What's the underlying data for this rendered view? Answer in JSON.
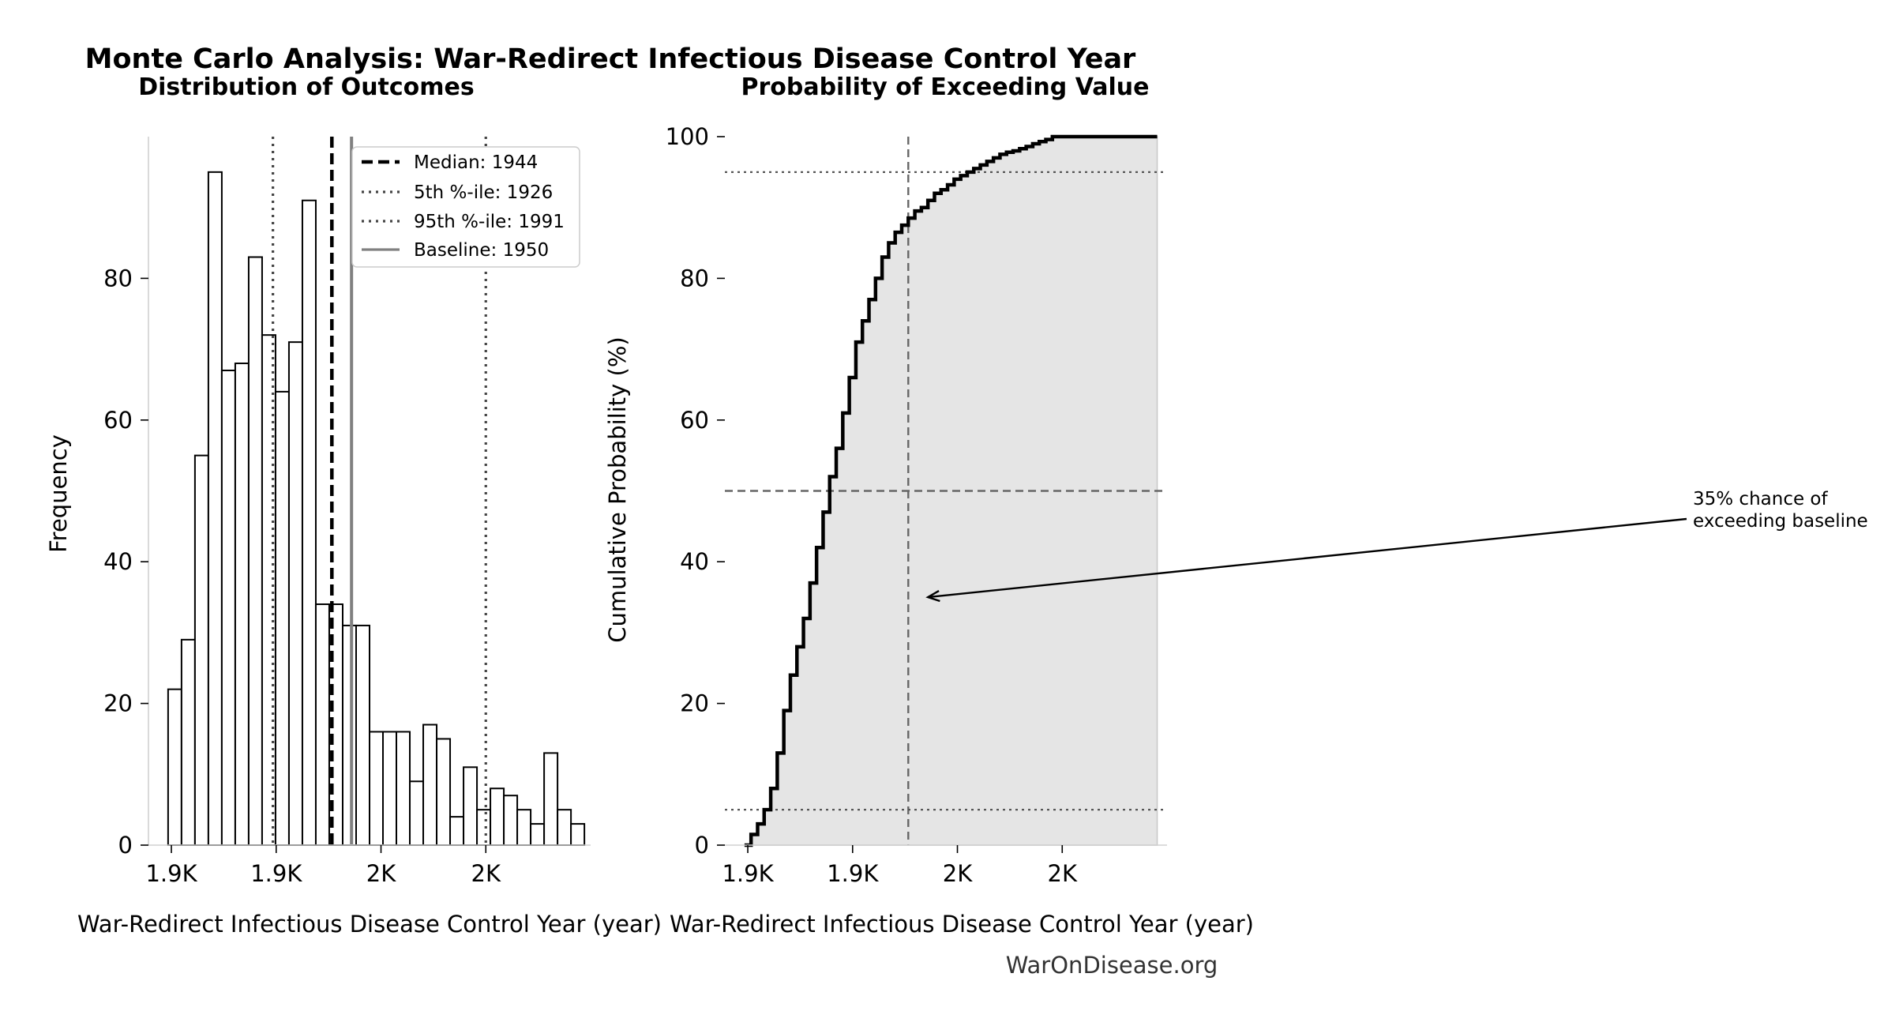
{
  "figure": {
    "title": "Monte Carlo Analysis: War-Redirect Infectious Disease Control Year",
    "footer": "WarOnDisease.org"
  },
  "chart_data": [
    {
      "type": "bar",
      "subtype": "histogram",
      "title": "Distribution of Outcomes",
      "xlabel": "War-Redirect Infectious Disease Control Year (year)",
      "ylabel": "Frequency",
      "xlim": [
        1888,
        2023
      ],
      "ylim": [
        0,
        100
      ],
      "yticks": [
        0,
        20,
        40,
        60,
        80
      ],
      "xticks": [
        {
          "value": 1895,
          "label": "1.9K"
        },
        {
          "value": 1927,
          "label": "1.9K"
        },
        {
          "value": 1959,
          "label": "2K"
        },
        {
          "value": 1991,
          "label": "2K"
        }
      ],
      "bins": {
        "start": 1894.0,
        "width": 4.1,
        "counts": [
          22,
          29,
          55,
          95,
          67,
          68,
          83,
          72,
          64,
          71,
          91,
          34,
          34,
          31,
          31,
          16,
          16,
          16,
          9,
          17,
          15,
          4,
          11,
          5,
          8,
          7,
          5,
          3,
          13,
          5,
          3
        ]
      },
      "reference_lines": [
        {
          "key": "median",
          "label": "Median: 1944",
          "value": 1944,
          "style": "dashed",
          "color": "#000000"
        },
        {
          "key": "p5",
          "label": "5th %-ile: 1926",
          "value": 1926,
          "style": "dotted",
          "color": "#444444"
        },
        {
          "key": "p95",
          "label": "95th %-ile: 1991",
          "value": 1991,
          "style": "dotted",
          "color": "#444444"
        },
        {
          "key": "baseline",
          "label": "Baseline: 1950",
          "value": 1950,
          "style": "solid",
          "color": "#808080"
        }
      ],
      "legend_placement": "top-right"
    },
    {
      "type": "line",
      "subtype": "cumulative-step",
      "title": "Probability of Exceeding Value",
      "xlabel": "War-Redirect Infectious Disease Control Year (year)",
      "ylabel": "Cumulative Probability (%)",
      "xlim": [
        1888,
        2023
      ],
      "ylim": [
        0,
        100
      ],
      "yticks": [
        0,
        20,
        40,
        60,
        80,
        100
      ],
      "xticks": [
        {
          "value": 1895,
          "label": "1.9K"
        },
        {
          "value": 1927,
          "label": "1.9K"
        },
        {
          "value": 1959,
          "label": "2K"
        },
        {
          "value": 1991,
          "label": "2K"
        }
      ],
      "curve": {
        "x": [
          1894,
          1896,
          1898,
          1900,
          1902,
          1904,
          1906,
          1908,
          1910,
          1912,
          1914,
          1916,
          1918,
          1920,
          1922,
          1924,
          1926,
          1928,
          1930,
          1932,
          1934,
          1936,
          1938,
          1940,
          1942,
          1944,
          1946,
          1948,
          1950,
          1952,
          1954,
          1956,
          1958,
          1960,
          1962,
          1964,
          1966,
          1968,
          1970,
          1972,
          1974,
          1976,
          1978,
          1980,
          1982,
          1984,
          1986,
          1988,
          1990,
          1992,
          1994,
          1996,
          1998,
          2000,
          2002,
          2004,
          2006,
          2008,
          2010,
          2012,
          2014,
          2016,
          2018,
          2020
        ],
        "y": [
          0,
          1.5,
          3,
          5,
          8,
          13,
          19,
          24,
          28,
          32,
          37,
          42,
          47,
          52,
          56,
          61,
          66,
          71,
          74,
          77,
          80,
          83,
          85,
          86.5,
          87.5,
          88.5,
          89.5,
          90,
          91,
          92,
          92.5,
          93.2,
          94,
          94.5,
          95,
          95.5,
          96,
          96.5,
          97,
          97.5,
          97.8,
          98,
          98.3,
          98.6,
          99,
          99.3,
          99.6,
          100,
          100,
          100,
          100,
          100,
          100,
          100,
          100,
          100,
          100,
          100,
          100,
          100,
          100,
          100,
          100,
          100
        ]
      },
      "reference_lines": [
        {
          "key": "median_v",
          "orientation": "vertical",
          "value": 1944,
          "style": "dashed"
        },
        {
          "key": "p50_h",
          "orientation": "horizontal",
          "value": 50,
          "style": "dashed"
        },
        {
          "key": "p5_h",
          "orientation": "horizontal",
          "value": 5,
          "style": "dotted"
        },
        {
          "key": "p95_h",
          "orientation": "horizontal",
          "value": 95,
          "style": "dotted"
        }
      ],
      "annotation": {
        "lines": [
          "35% chance of",
          "exceeding baseline"
        ],
        "point_x": 1950,
        "point_y": 35
      }
    }
  ]
}
